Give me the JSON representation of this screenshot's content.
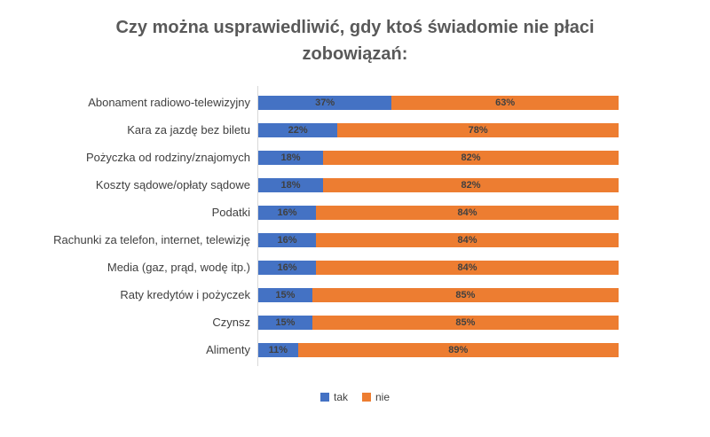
{
  "header": {
    "line1": "Czy można usprawiedliwić, gdy ktoś świadomie nie płaci",
    "line2": "zobowiązań:"
  },
  "chart_data": {
    "type": "bar",
    "orientation": "horizontal",
    "stacked": true,
    "stacked_total": 100,
    "title": "Czy można usprawiedliwić, gdy ktoś świadomie nie płaci zobowiązań:",
    "categories": [
      "Abonament radiowo-telewizyjny",
      "Kara za jazdę bez biletu",
      "Pożyczka od rodziny/znajomych",
      "Koszty sądowe/opłaty sądowe",
      "Podatki",
      "Rachunki za telefon, internet, telewizję",
      "Media (gaz, prąd, wodę itp.)",
      "Raty kredytów i pożyczek",
      "Czynsz",
      "Alimenty"
    ],
    "series": [
      {
        "name": "tak",
        "color": "#4472C4",
        "values": [
          37,
          22,
          18,
          18,
          16,
          16,
          16,
          15,
          15,
          11
        ]
      },
      {
        "name": "nie",
        "color": "#ED7D31",
        "values": [
          63,
          78,
          82,
          82,
          84,
          84,
          84,
          85,
          85,
          89
        ]
      }
    ],
    "value_suffix": "%",
    "xlim": [
      0,
      100
    ],
    "grid": false,
    "legend_position": "bottom",
    "axis_line_color": "#D9D9D9",
    "title_color": "#595959",
    "label_color": "#404040"
  }
}
